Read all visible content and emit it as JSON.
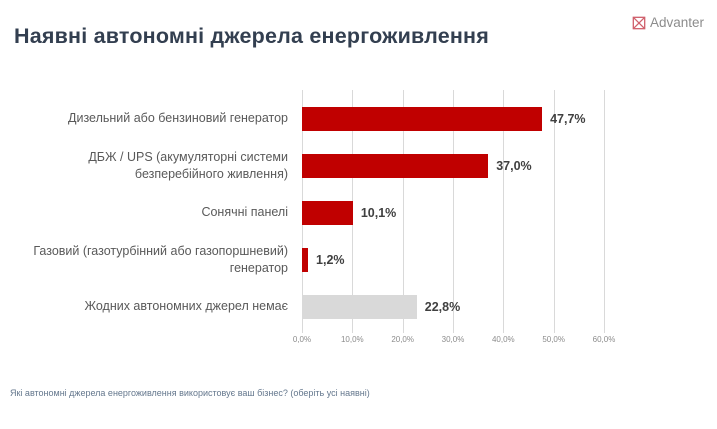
{
  "header": {
    "title": "Наявні автономні джерела енергоживлення",
    "logo_text": "Advanter"
  },
  "colors": {
    "accent_red": "#c00000",
    "neutral_gray": "#d9d9d9",
    "title_navy": "#333f50",
    "logo_red": "#d0606c",
    "logo_text_gray": "#8c8c8c",
    "label_gray": "#595959",
    "value_gray": "#404040",
    "tick_gray": "#8c8c8c",
    "grid_gray": "#d9d9d9",
    "footnote_blue": "#64778d"
  },
  "chart_data": {
    "type": "bar",
    "orientation": "horizontal",
    "title": "Наявні автономні джерела енергоживлення",
    "categories": [
      "Дизельний або бензиновий генератор",
      "ДБЖ / UPS (акумуляторні системи безперебійного живлення)",
      "Сонячні панелі",
      "Газовий (газотурбінний або газопоршневий) генератор",
      "Жодних автономних джерел немає"
    ],
    "values": [
      47.7,
      37.0,
      10.1,
      1.2,
      22.8
    ],
    "value_labels": [
      "47,7%",
      "37,0%",
      "10,1%",
      "1,2%",
      "22,8%"
    ],
    "bar_colors": [
      "#c00000",
      "#c00000",
      "#c00000",
      "#c00000",
      "#d9d9d9"
    ],
    "xlim": [
      0,
      60
    ],
    "x_ticks": [
      {
        "value": 0,
        "label": "0,0%"
      },
      {
        "value": 10,
        "label": "10,0%"
      },
      {
        "value": 20,
        "label": "20,0%"
      },
      {
        "value": 30,
        "label": "30,0%"
      },
      {
        "value": 40,
        "label": "40,0%"
      },
      {
        "value": 50,
        "label": "50,0%"
      },
      {
        "value": 60,
        "label": "60,0%"
      }
    ],
    "grid": true,
    "legend": false
  },
  "footer": {
    "note": "Які автономні джерела енергоживлення використовує ваш бізнес? (оберіть усі наявні)"
  }
}
